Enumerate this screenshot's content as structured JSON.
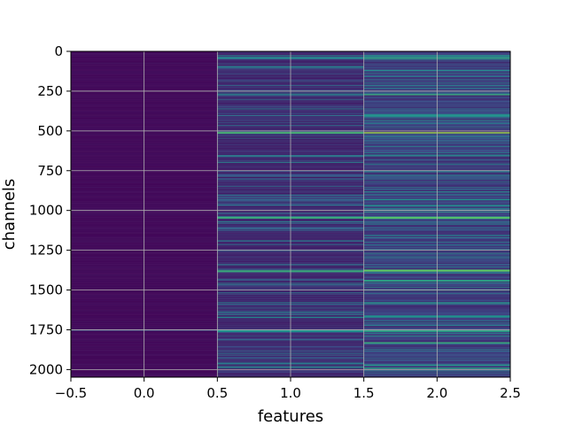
{
  "chart_data": {
    "type": "heatmap",
    "title": "",
    "xlabel": "features",
    "ylabel": "channels",
    "xlim": [
      -0.5,
      2.5
    ],
    "ylim": [
      2048,
      0
    ],
    "x_ticks": [
      -0.5,
      0.0,
      0.5,
      1.0,
      1.5,
      2.0,
      2.5
    ],
    "x_tick_labels": [
      "−0.5",
      "0.0",
      "0.5",
      "1.0",
      "1.5",
      "2.0",
      "2.5"
    ],
    "y_ticks": [
      0,
      250,
      500,
      750,
      1000,
      1250,
      1500,
      1750,
      2000
    ],
    "y_tick_labels": [
      "0",
      "250",
      "500",
      "750",
      "1000",
      "1250",
      "1500",
      "1750",
      "2000"
    ],
    "columns": [
      0,
      1,
      2
    ],
    "rows": 2048,
    "colormap": "viridis",
    "grid": true,
    "column_intensity": [
      {
        "column": 0,
        "base_level": 0.03,
        "highlights": [
          {
            "channel": 1750,
            "value": 0.25
          }
        ]
      },
      {
        "column": 1,
        "base_level": 0.12,
        "highlights": [
          {
            "channel": 40,
            "value": 0.45
          },
          {
            "channel": 95,
            "value": 0.4
          },
          {
            "channel": 270,
            "value": 0.45
          },
          {
            "channel": 510,
            "value": 0.7
          },
          {
            "channel": 655,
            "value": 0.4
          },
          {
            "channel": 1045,
            "value": 0.6
          },
          {
            "channel": 1380,
            "value": 0.6
          },
          {
            "channel": 1670,
            "value": 0.45
          },
          {
            "channel": 1755,
            "value": 0.5
          },
          {
            "channel": 1960,
            "value": 0.4
          }
        ]
      },
      {
        "column": 2,
        "base_level": 0.18,
        "highlights": [
          {
            "channel": 40,
            "value": 0.55
          },
          {
            "channel": 270,
            "value": 0.6
          },
          {
            "channel": 400,
            "value": 0.5
          },
          {
            "channel": 510,
            "value": 0.85
          },
          {
            "channel": 930,
            "value": 0.5
          },
          {
            "channel": 1045,
            "value": 0.7
          },
          {
            "channel": 1375,
            "value": 0.75
          },
          {
            "channel": 1440,
            "value": 0.55
          },
          {
            "channel": 1665,
            "value": 0.5
          },
          {
            "channel": 1755,
            "value": 0.55
          },
          {
            "channel": 1830,
            "value": 0.6
          },
          {
            "channel": 1990,
            "value": 0.55
          }
        ]
      }
    ]
  }
}
